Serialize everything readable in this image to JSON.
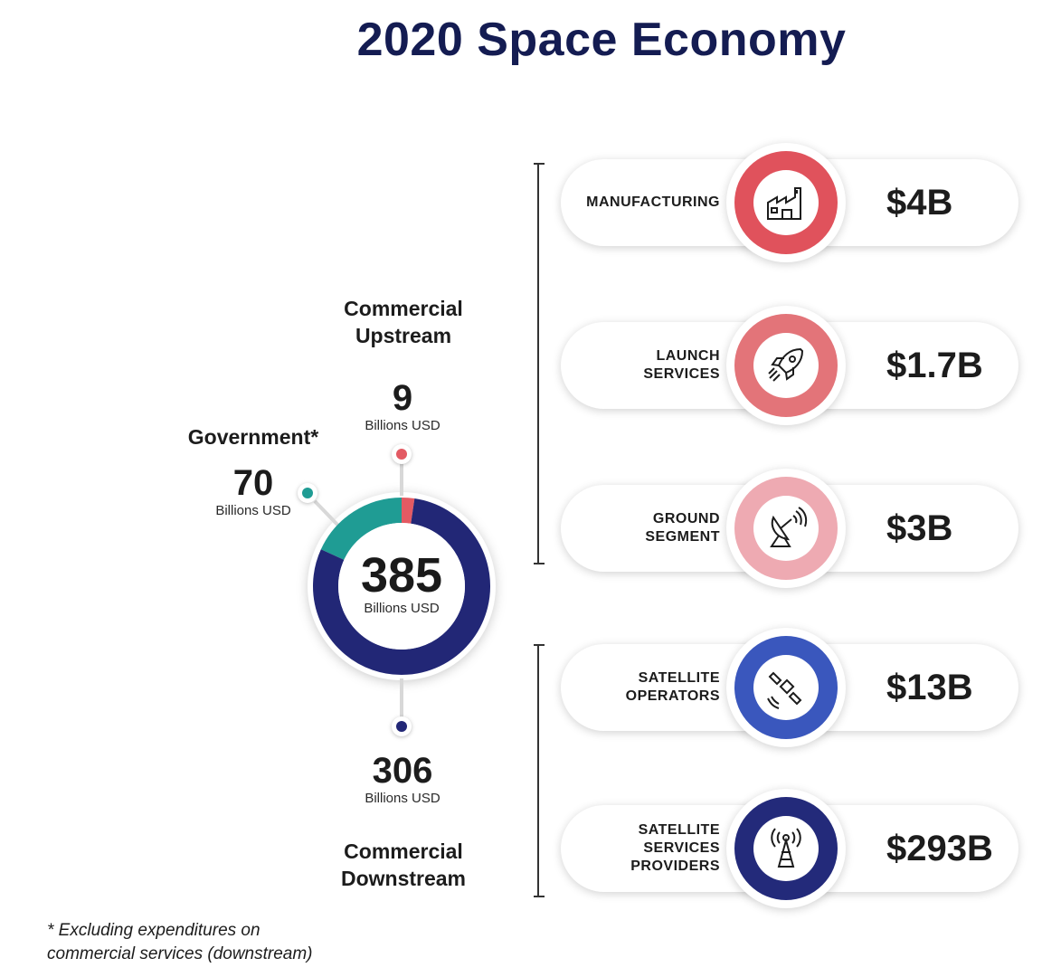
{
  "title": "2020 Space Economy",
  "colors": {
    "government": "#1f9c94",
    "upstream": "#e35a63",
    "downstream": "#222776",
    "manufacturing": "#e0525c",
    "launch": "#e37479",
    "ground": "#eeaab2",
    "satellite_operators": "#3a57bd",
    "satellite_services": "#232a7a"
  },
  "total": {
    "value": "385",
    "unit": "Billions USD"
  },
  "segments": {
    "government": {
      "name": "Government*",
      "value": "70",
      "unit": "Billions USD"
    },
    "upstream": {
      "name_line1": "Commercial",
      "name_line2": "Upstream",
      "value": "9",
      "unit": "Billions USD"
    },
    "downstream": {
      "name_line1": "Commercial",
      "name_line2": "Downstream",
      "value": "306",
      "unit": "Billions USD"
    }
  },
  "items": [
    {
      "label_line1": "MANUFACTURING",
      "label_line2": "",
      "label_line3": "",
      "value": "$4B",
      "icon": "factory-icon"
    },
    {
      "label_line1": "LAUNCH",
      "label_line2": "SERVICES",
      "label_line3": "",
      "value": "$1.7B",
      "icon": "rocket-icon"
    },
    {
      "label_line1": "GROUND",
      "label_line2": "SEGMENT",
      "label_line3": "",
      "value": "$3B",
      "icon": "satellite-dish-icon"
    },
    {
      "label_line1": "SATELLITE",
      "label_line2": "OPERATORS",
      "label_line3": "",
      "value": "$13B",
      "icon": "satellite-icon"
    },
    {
      "label_line1": "SATELLITE",
      "label_line2": "SERVICES",
      "label_line3": "PROVIDERS",
      "value": "$293B",
      "icon": "broadcast-tower-icon"
    }
  ],
  "footnote": {
    "line1": "* Excluding expenditures on",
    "line2": "commercial services (downstream)"
  },
  "chart_data": {
    "type": "pie",
    "title": "2020 Space Economy",
    "unit": "Billions USD",
    "total": 385,
    "categories": [
      "Government*",
      "Commercial Upstream",
      "Commercial Downstream"
    ],
    "values": [
      70,
      9,
      306
    ],
    "breakdown": {
      "categories": [
        "MANUFACTURING",
        "LAUNCH SERVICES",
        "GROUND SEGMENT",
        "SATELLITE OPERATORS",
        "SATELLITE SERVICES PROVIDERS"
      ],
      "values": [
        4,
        1.7,
        3,
        13,
        293
      ],
      "unit": "Billions USD"
    }
  }
}
